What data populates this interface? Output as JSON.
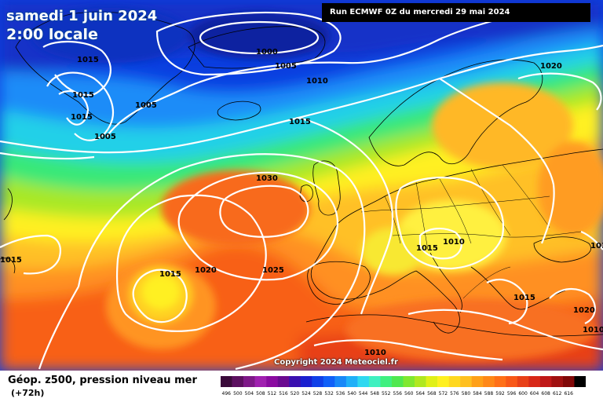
{
  "header": {
    "date": "samedi 1 juin 2024",
    "time": "2:00 locale",
    "run": "Run ECMWF 0Z du mercredi 29 mai 2024"
  },
  "map": {
    "copyright": "Copyright 2024 Meteociel.fr",
    "isobar_labels": [
      {
        "value": "1015"
      },
      {
        "value": "1015"
      },
      {
        "value": "1015"
      },
      {
        "value": "1005"
      },
      {
        "value": "1005"
      },
      {
        "value": "1000"
      },
      {
        "value": "1005"
      },
      {
        "value": "1010"
      },
      {
        "value": "1015"
      },
      {
        "value": "1020"
      },
      {
        "value": "1030"
      },
      {
        "value": "1025"
      },
      {
        "value": "1020"
      },
      {
        "value": "1015"
      },
      {
        "value": "1015"
      },
      {
        "value": "1010"
      },
      {
        "value": "1015"
      },
      {
        "value": "1015"
      },
      {
        "value": "1020"
      },
      {
        "value": "1010"
      },
      {
        "value": "1015"
      },
      {
        "value": "1010"
      }
    ]
  },
  "legend": {
    "title": "Géop. z500, pression niveau mer",
    "subtitle": "(+72h)",
    "unit_levels": [
      "496",
      "500",
      "504",
      "508",
      "512",
      "516",
      "520",
      "524",
      "528",
      "532",
      "536",
      "540",
      "544",
      "548",
      "552",
      "556",
      "560",
      "564",
      "568",
      "572",
      "576",
      "580",
      "584",
      "588",
      "592",
      "596",
      "600",
      "604",
      "608",
      "612",
      "616"
    ],
    "colors": [
      "#3a0a3a",
      "#5c1060",
      "#7e1888",
      "#a020b0",
      "#8a0aa0",
      "#6a0a90",
      "#3a10b0",
      "#1a20d0",
      "#1040e8",
      "#1060f8",
      "#1888f8",
      "#20b0f8",
      "#30d8f0",
      "#40f0c0",
      "#40f080",
      "#50e850",
      "#80e830",
      "#b0e820",
      "#e0f018",
      "#fff020",
      "#ffd820",
      "#ffc020",
      "#ffa018",
      "#ff8818",
      "#ff7018",
      "#f85818",
      "#e84018",
      "#d82818",
      "#c01818",
      "#a01010",
      "#800808",
      "#000000"
    ]
  }
}
